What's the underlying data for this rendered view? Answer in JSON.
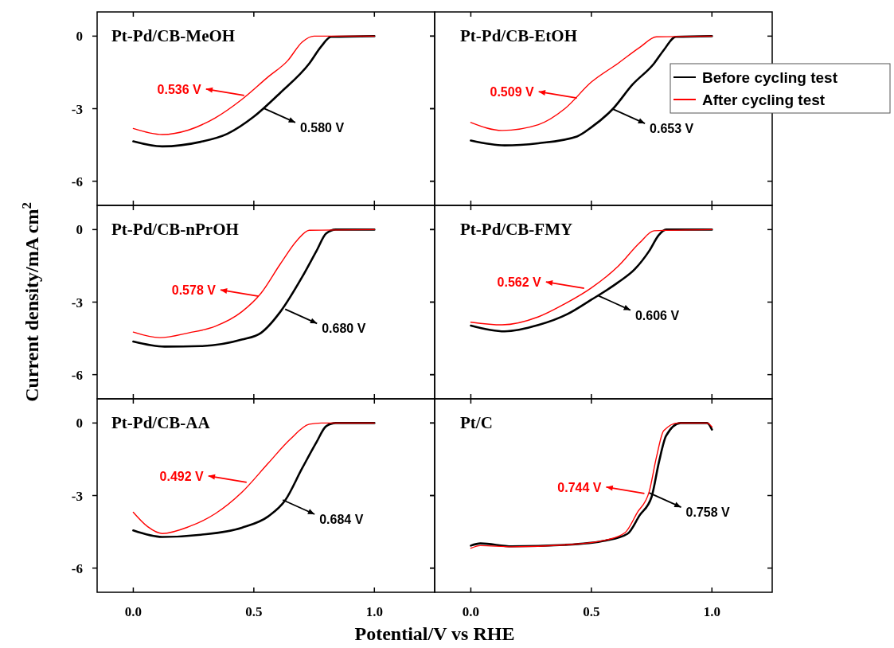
{
  "chart_data": [
    {
      "type": "line",
      "title": "Pt-Pd/CB-MeOH",
      "xlim": [
        -0.15,
        1.25
      ],
      "ylim": [
        -7,
        1
      ],
      "xticks": [
        0,
        0.5,
        1
      ],
      "yticks": [
        0,
        -3,
        -6
      ],
      "tick_labels": "y",
      "legend": false,
      "series": [
        {
          "color": "#000000",
          "x": [
            0,
            0.12,
            0.28,
            0.39,
            0.5,
            0.61,
            0.73,
            0.78,
            0.82,
            1.0
          ],
          "values": [
            -4.35,
            -4.56,
            -4.37,
            -4.04,
            -3.33,
            -2.34,
            -1.13,
            -0.42,
            -0.03,
            0
          ]
        },
        {
          "color": "#ff0000",
          "x": [
            0,
            0.12,
            0.23,
            0.34,
            0.45,
            0.56,
            0.64,
            0.7,
            0.75,
            1.0
          ],
          "values": [
            -3.82,
            -4.07,
            -3.88,
            -3.38,
            -2.62,
            -1.68,
            -1.02,
            -0.25,
            0,
            0
          ]
        }
      ],
      "annotations": [
        {
          "text": "0.580 V",
          "x": 0.54,
          "y": -2.98
        },
        {
          "text": "0.536 V",
          "x": 0.46,
          "y": -2.45
        }
      ]
    },
    {
      "type": "line",
      "title": "Pt-Pd/CB-EtOH",
      "xlim": [
        -0.15,
        1.25
      ],
      "ylim": [
        -7,
        1
      ],
      "xticks": [
        0,
        0.5,
        1
      ],
      "yticks": [
        0,
        -3,
        -6
      ],
      "tick_labels": false,
      "legend": "top right",
      "series": [
        {
          "name": "Before cycling test",
          "color": "#000000",
          "x": [
            0,
            0.14,
            0.28,
            0.44,
            0.5,
            0.59,
            0.67,
            0.76,
            0.8,
            0.85,
            1.0
          ],
          "values": [
            -4.32,
            -4.52,
            -4.43,
            -4.15,
            -3.77,
            -3.0,
            -2.01,
            -1.13,
            -0.58,
            -0.03,
            0
          ]
        },
        {
          "name": "After cycling test",
          "color": "#ff0000",
          "x": [
            0,
            0.13,
            0.28,
            0.39,
            0.5,
            0.61,
            0.7,
            0.77,
            1.0
          ],
          "values": [
            -3.57,
            -3.9,
            -3.66,
            -3.0,
            -1.9,
            -1.13,
            -0.47,
            -0.03,
            0
          ]
        }
      ],
      "annotations": [
        {
          "text": "0.653 V",
          "x": 0.59,
          "y": -3.02
        },
        {
          "text": "0.509 V",
          "x": 0.44,
          "y": -2.56
        }
      ]
    },
    {
      "type": "line",
      "title": "Pt-Pd/CB-nPrOH",
      "ylabel": "Current density/mA cm$^{2}$",
      "xlim": [
        -0.15,
        1.25
      ],
      "ylim": [
        -7,
        1
      ],
      "xticks": [
        0,
        0.5,
        1
      ],
      "yticks": [
        0,
        -3,
        -6
      ],
      "tick_labels": "y",
      "legend": false,
      "series": [
        {
          "color": "#000000",
          "x": [
            0,
            0.13,
            0.28,
            0.45,
            0.53,
            0.61,
            0.7,
            0.76,
            0.8,
            0.84,
            1.0
          ],
          "values": [
            -4.63,
            -4.84,
            -4.82,
            -4.55,
            -4.27,
            -3.4,
            -1.97,
            -0.88,
            -0.16,
            0,
            0
          ]
        },
        {
          "color": "#ff0000",
          "x": [
            0,
            0.11,
            0.23,
            0.34,
            0.45,
            0.53,
            0.61,
            0.68,
            0.73,
            1.0
          ],
          "values": [
            -4.24,
            -4.47,
            -4.27,
            -4.0,
            -3.4,
            -2.63,
            -1.42,
            -0.44,
            -0.03,
            0
          ]
        }
      ],
      "annotations": [
        {
          "text": "0.680 V",
          "x": 0.63,
          "y": -3.29
        },
        {
          "text": "0.578 V",
          "x": 0.52,
          "y": -2.76
        }
      ]
    },
    {
      "type": "line",
      "title": "Pt-Pd/CB-FMY",
      "xlim": [
        -0.15,
        1.25
      ],
      "ylim": [
        -7,
        1
      ],
      "xticks": [
        0,
        0.5,
        1
      ],
      "yticks": [
        0,
        -3,
        -6
      ],
      "tick_labels": false,
      "legend": false,
      "series": [
        {
          "color": "#000000",
          "x": [
            0,
            0.14,
            0.28,
            0.4,
            0.5,
            0.61,
            0.68,
            0.74,
            0.78,
            0.81,
            1.0
          ],
          "values": [
            -3.97,
            -4.21,
            -3.95,
            -3.5,
            -2.9,
            -2.19,
            -1.64,
            -0.88,
            -0.22,
            0,
            0
          ]
        },
        {
          "color": "#ff0000",
          "x": [
            0,
            0.13,
            0.28,
            0.39,
            0.5,
            0.61,
            0.7,
            0.76,
            1.0
          ],
          "values": [
            -3.83,
            -3.94,
            -3.61,
            -3.07,
            -2.41,
            -1.53,
            -0.55,
            -0.05,
            0
          ]
        }
      ],
      "annotations": [
        {
          "text": "0.606 V",
          "x": 0.53,
          "y": -2.74
        },
        {
          "text": "0.562 V",
          "x": 0.47,
          "y": -2.43
        }
      ]
    },
    {
      "type": "line",
      "title": "Pt-Pd/CB-AA",
      "xlabel": "Potential/V vs RHE",
      "xlim": [
        -0.15,
        1.25
      ],
      "ylim": [
        -7,
        1
      ],
      "xticks": [
        {
          "value": 0,
          "label": "0.0"
        },
        {
          "value": 0.5,
          "label": "0.5"
        },
        {
          "value": 1,
          "label": "1.0"
        }
      ],
      "yticks": [
        0,
        -3,
        -6
      ],
      "legend": false,
      "series": [
        {
          "color": "#000000",
          "x": [
            0,
            0.12,
            0.28,
            0.45,
            0.56,
            0.63,
            0.7,
            0.76,
            0.8,
            0.84,
            1.0
          ],
          "values": [
            -4.44,
            -4.71,
            -4.62,
            -4.33,
            -3.86,
            -3.2,
            -1.88,
            -0.79,
            -0.13,
            0,
            0
          ]
        },
        {
          "color": "#ff0000",
          "x": [
            0,
            0.06,
            0.12,
            0.23,
            0.34,
            0.45,
            0.56,
            0.65,
            0.73,
            0.78,
            1.0
          ],
          "values": [
            -3.69,
            -4.29,
            -4.57,
            -4.29,
            -3.75,
            -2.87,
            -1.66,
            -0.68,
            -0.05,
            0,
            0
          ]
        }
      ],
      "annotations": [
        {
          "text": "0.684 V",
          "x": 0.62,
          "y": -3.18
        },
        {
          "text": "0.492 V",
          "x": 0.47,
          "y": -2.45
        }
      ]
    },
    {
      "type": "line",
      "title": "Pt/C",
      "xlim": [
        -0.15,
        1.25
      ],
      "ylim": [
        -7,
        1
      ],
      "xticks": [
        {
          "value": 0,
          "label": "0.0"
        },
        {
          "value": 0.5,
          "label": "0.5"
        },
        {
          "value": 1,
          "label": "1.0"
        }
      ],
      "yticks": [
        0,
        -3,
        -6
      ],
      "tick_labels": "x",
      "legend": false,
      "series": [
        {
          "color": "#000000",
          "x": [
            0,
            0.04,
            0.17,
            0.39,
            0.56,
            0.65,
            0.7,
            0.75,
            0.78,
            0.81,
            0.87,
            0.98,
            1.0
          ],
          "values": [
            -5.07,
            -4.98,
            -5.1,
            -5.04,
            -4.86,
            -4.58,
            -3.82,
            -3.05,
            -1.63,
            -0.53,
            0,
            0,
            -0.27
          ]
        },
        {
          "color": "#ff0000",
          "x": [
            0,
            0.04,
            0.17,
            0.39,
            0.56,
            0.64,
            0.69,
            0.74,
            0.77,
            0.8,
            0.86,
            0.98,
            1.0
          ],
          "values": [
            -5.18,
            -5.07,
            -5.12,
            -5.04,
            -4.84,
            -4.53,
            -3.71,
            -2.83,
            -1.41,
            -0.32,
            0,
            0,
            -0.16
          ]
        }
      ],
      "annotations": [
        {
          "text": "0.758 V",
          "x": 0.74,
          "y": -2.89
        },
        {
          "text": "0.744 V",
          "x": 0.72,
          "y": -2.91
        }
      ]
    }
  ]
}
